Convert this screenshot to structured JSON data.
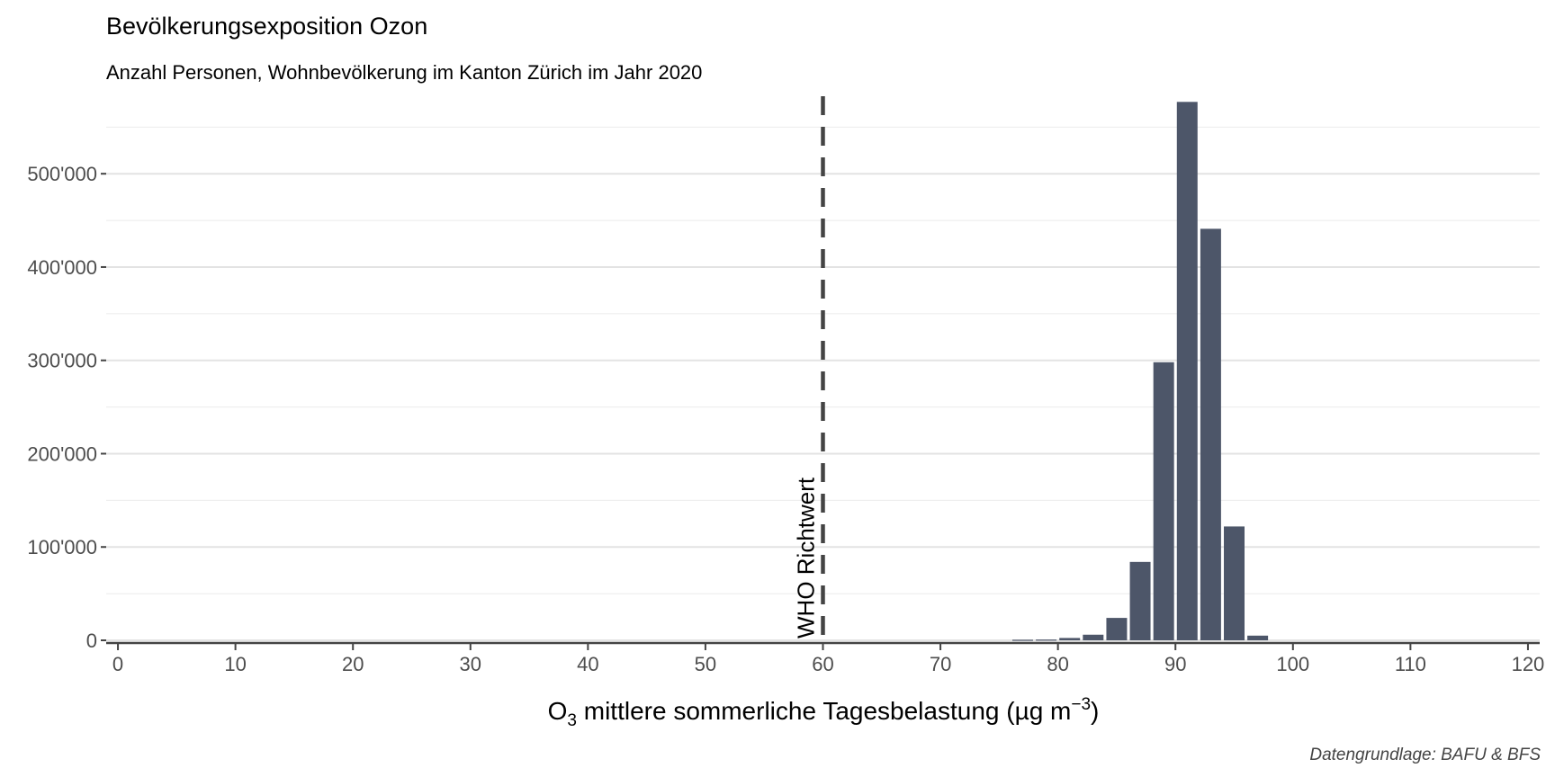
{
  "chart_data": {
    "type": "bar",
    "title": "Bevölkerungsexposition Ozon",
    "subtitle": "Anzahl Personen, Wohnbevölkerung im Kanton Zürich im Jahr 2020",
    "xlabel_main": "O",
    "xlabel_sub": "3",
    "xlabel_rest": " mittlere sommerliche Tagesbelastung (µg m",
    "xlabel_sup": "−3",
    "xlabel_close": ")",
    "ylabel": "",
    "caption": "Datengrundlage: BAFU & BFS",
    "xlim": [
      -1,
      121
    ],
    "ylim": [
      0,
      585000
    ],
    "x_ticks": [
      0,
      10,
      20,
      30,
      40,
      50,
      60,
      70,
      80,
      90,
      100,
      110,
      120
    ],
    "y_ticks": [
      0,
      100000,
      200000,
      300000,
      400000,
      500000
    ],
    "y_tick_labels": [
      "0",
      "100'000",
      "200'000",
      "300'000",
      "400'000",
      "500'000"
    ],
    "bin_width": 2,
    "bars": [
      {
        "x": 77,
        "value": 600
      },
      {
        "x": 79,
        "value": 800
      },
      {
        "x": 81,
        "value": 2500
      },
      {
        "x": 83,
        "value": 6000
      },
      {
        "x": 85,
        "value": 24000
      },
      {
        "x": 87,
        "value": 84000
      },
      {
        "x": 89,
        "value": 298000
      },
      {
        "x": 91,
        "value": 577000
      },
      {
        "x": 93,
        "value": 441000
      },
      {
        "x": 95,
        "value": 122000
      },
      {
        "x": 97,
        "value": 5000
      }
    ],
    "reference_line": {
      "x": 60,
      "label": "WHO Richtwert"
    },
    "bar_color": "#4d5669",
    "grid": true,
    "legend": "none"
  }
}
